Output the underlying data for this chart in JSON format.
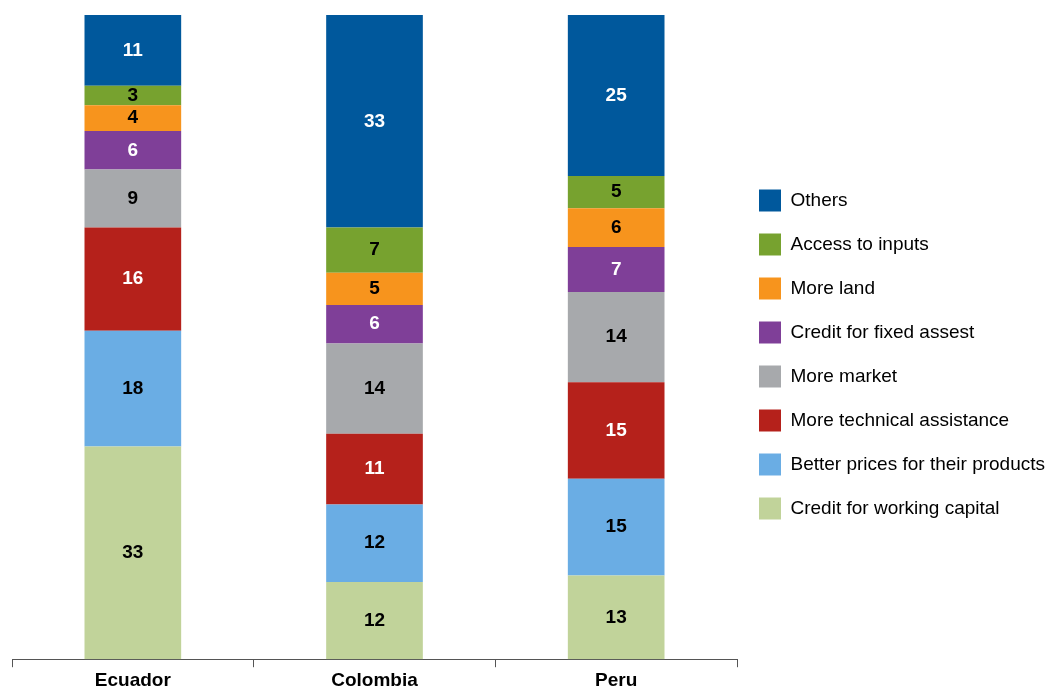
{
  "chart_data": {
    "type": "bar",
    "stacked": true,
    "categories": [
      "Ecuador",
      "Colombia",
      "Peru"
    ],
    "series": [
      {
        "name": "Credit for working capital",
        "color": "#c1d39a",
        "values": [
          33,
          12,
          13
        ]
      },
      {
        "name": "Better prices for their products",
        "color": "#6aade4",
        "values": [
          18,
          12,
          15
        ]
      },
      {
        "name": "More technical assistance",
        "color": "#b5211b",
        "values": [
          16,
          11,
          15
        ]
      },
      {
        "name": "More market",
        "color": "#a7a9ac",
        "values": [
          9,
          14,
          14
        ]
      },
      {
        "name": "Credit for fixed assest",
        "color": "#7f3f98",
        "values": [
          6,
          6,
          7
        ]
      },
      {
        "name": "More land",
        "color": "#f7941d",
        "values": [
          4,
          5,
          6
        ]
      },
      {
        "name": "Access to inputs",
        "color": "#77a22f",
        "values": [
          3,
          7,
          5
        ]
      },
      {
        "name": "Others",
        "color": "#00589c",
        "values": [
          11,
          33,
          25
        ]
      }
    ],
    "ylim": [
      0,
      100
    ],
    "tick_labels": "x",
    "data_labels": true,
    "legend": "right",
    "grid": false
  }
}
